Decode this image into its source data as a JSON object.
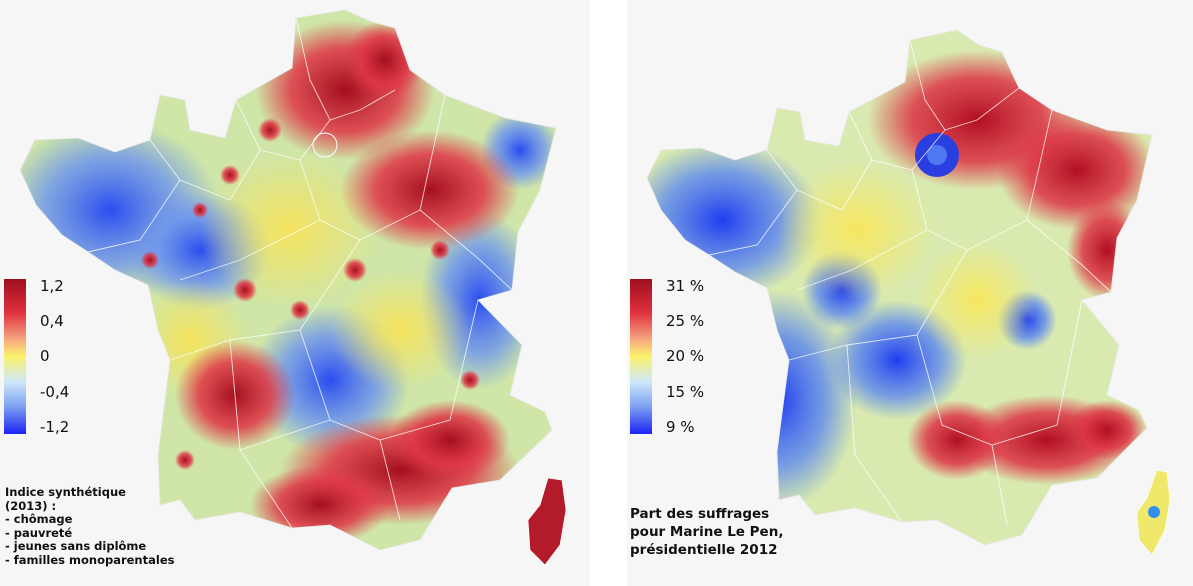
{
  "left_map": {
    "legend_ticks": [
      "1,2",
      "0,4",
      "0",
      "-0,4",
      "-1,2"
    ],
    "caption_lines": [
      "Indice synthétique",
      "(2013) :",
      "- chômage",
      "- pauvreté",
      "- jeunes sans diplôme",
      "- familles monoparentales"
    ]
  },
  "right_map": {
    "legend_ticks": [
      "31 %",
      "25 %",
      "20 %",
      "15 %",
      "9 %"
    ],
    "caption_lines": [
      "Part des suffrages",
      "pour Marine Le Pen,",
      "présidentielle 2012"
    ]
  },
  "colors": {
    "scale_high": "#9e0e1c",
    "scale_mid": "#fbf36c",
    "scale_low": "#1a24f5",
    "background": "#f6f6f6"
  }
}
